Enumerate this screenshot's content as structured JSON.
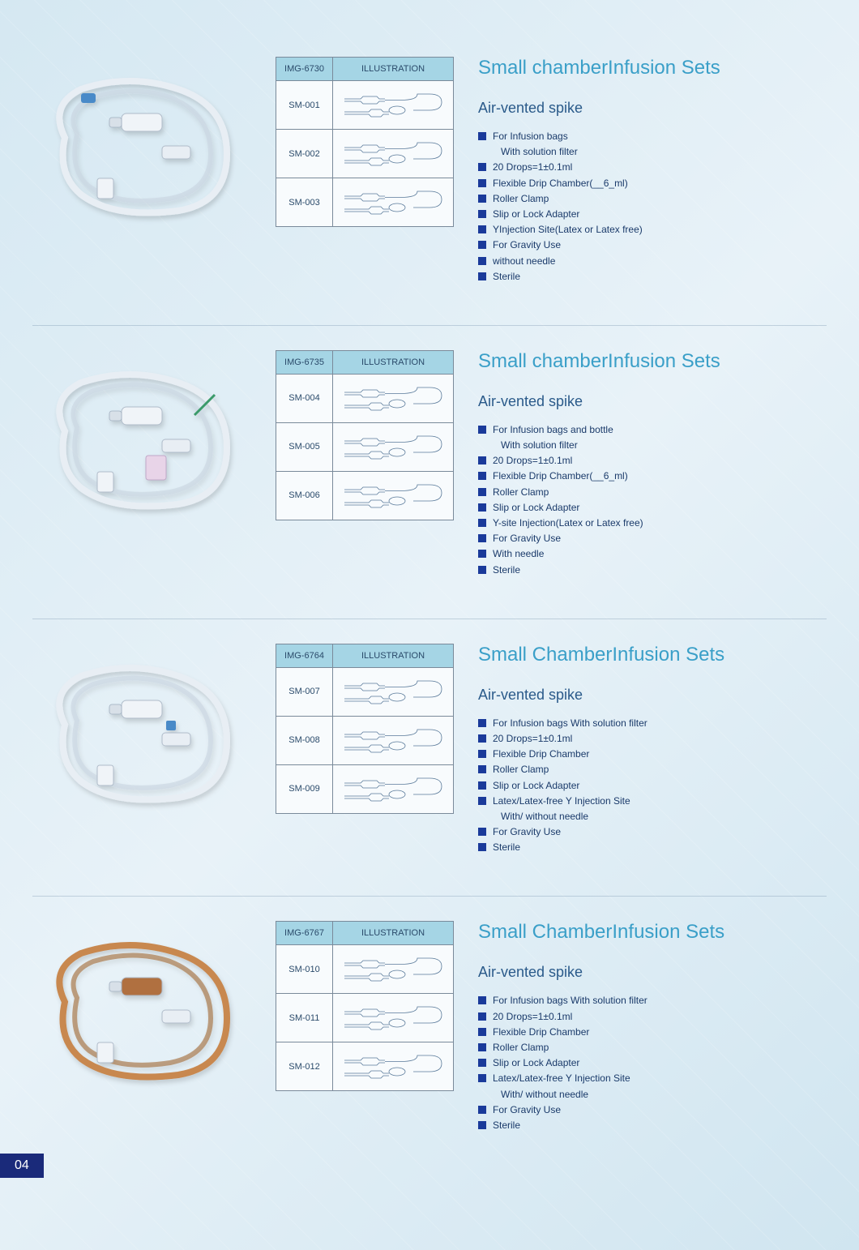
{
  "page_number": "04",
  "colors": {
    "title": "#3a9fc8",
    "subtitle": "#2a5a8a",
    "text": "#1a3a6a",
    "bullet": "#1a3a9a",
    "table_header_bg": "#a5d5e5",
    "table_border": "#7a8a9a",
    "page_num_bg": "#1a2a7a"
  },
  "sections": [
    {
      "img_code": "IMG-6730",
      "illus_header": "ILLUSTRATION",
      "title": "Small chamberInfusion Sets",
      "subtitle": "Air-vented spike",
      "photo_tint": "#e0e8f0",
      "rows": [
        {
          "code": "SM-001"
        },
        {
          "code": "SM-002"
        },
        {
          "code": "SM-003"
        }
      ],
      "features": [
        {
          "t": "For Infusion bags",
          "b": true
        },
        {
          "t": "With solution filter",
          "b": false
        },
        {
          "t": "20 Drops=1±0.1ml",
          "b": true
        },
        {
          "t": "Flexible Drip Chamber(__6_ml)",
          "b": true
        },
        {
          "t": "Roller Clamp",
          "b": true
        },
        {
          "t": "Slip or Lock Adapter",
          "b": true
        },
        {
          "t": "YInjection Site(Latex or Latex free)",
          "b": true
        },
        {
          "t": "For Gravity Use",
          "b": true
        },
        {
          "t": "without needle",
          "b": true
        },
        {
          "t": "Sterile",
          "b": true
        }
      ]
    },
    {
      "img_code": "IMG-6735",
      "illus_header": "ILLUSTRATION",
      "title": "Small chamberInfusion Sets",
      "subtitle": "Air-vented spike",
      "photo_tint": "#e0e8f0",
      "rows": [
        {
          "code": "SM-004"
        },
        {
          "code": "SM-005"
        },
        {
          "code": "SM-006"
        }
      ],
      "features": [
        {
          "t": "For Infusion bags and bottle",
          "b": true
        },
        {
          "t": "With solution filter",
          "b": false
        },
        {
          "t": "20 Drops=1±0.1ml",
          "b": true
        },
        {
          "t": "Flexible Drip Chamber(__6_ml)",
          "b": true
        },
        {
          "t": "Roller Clamp",
          "b": true
        },
        {
          "t": "Slip or Lock Adapter",
          "b": true
        },
        {
          "t": "Y-site Injection(Latex or Latex free)",
          "b": true
        },
        {
          "t": "For Gravity Use",
          "b": true
        },
        {
          "t": "With needle",
          "b": true
        },
        {
          "t": "Sterile",
          "b": true
        }
      ]
    },
    {
      "img_code": "IMG-6764",
      "illus_header": "ILLUSTRATION",
      "title": "Small ChamberInfusion Sets",
      "subtitle": "Air-vented spike",
      "photo_tint": "#e0e8f0",
      "rows": [
        {
          "code": "SM-007"
        },
        {
          "code": "SM-008"
        },
        {
          "code": "SM-009"
        }
      ],
      "features": [
        {
          "t": "For Infusion bags With solution filter",
          "b": true
        },
        {
          "t": "20 Drops=1±0.1ml",
          "b": true
        },
        {
          "t": "Flexible Drip Chamber",
          "b": true
        },
        {
          "t": "Roller Clamp",
          "b": true
        },
        {
          "t": "Slip or Lock Adapter",
          "b": true
        },
        {
          "t": "Latex/Latex-free Y Injection Site",
          "b": true
        },
        {
          "t": "With/ without needle",
          "b": false
        },
        {
          "t": "For Gravity Use",
          "b": true
        },
        {
          "t": "Sterile",
          "b": true
        }
      ]
    },
    {
      "img_code": "IMG-6767",
      "illus_header": "ILLUSTRATION",
      "title": "Small ChamberInfusion Sets",
      "subtitle": "Air-vented spike",
      "photo_tint": "#c88850",
      "rows": [
        {
          "code": "SM-010"
        },
        {
          "code": "SM-011"
        },
        {
          "code": "SM-012"
        }
      ],
      "features": [
        {
          "t": "For Infusion bags With solution filter",
          "b": true
        },
        {
          "t": "20 Drops=1±0.1ml",
          "b": true
        },
        {
          "t": "Flexible Drip Chamber",
          "b": true
        },
        {
          "t": "Roller Clamp",
          "b": true
        },
        {
          "t": "Slip or Lock Adapter",
          "b": true
        },
        {
          "t": "Latex/Latex-free Y Injection Site",
          "b": true
        },
        {
          "t": "With/ without needle",
          "b": false
        },
        {
          "t": "For Gravity Use",
          "b": true
        },
        {
          "t": "Sterile",
          "b": true
        }
      ]
    }
  ]
}
